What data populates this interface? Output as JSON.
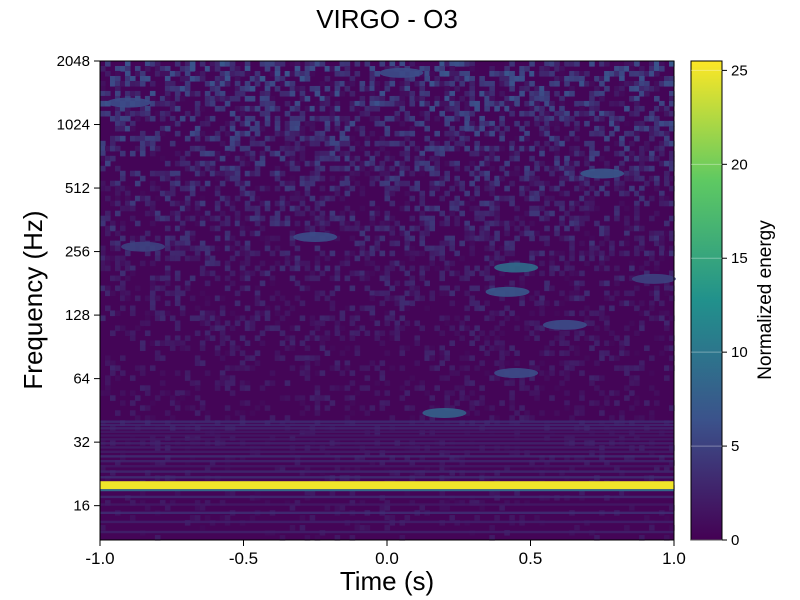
{
  "chart_data": {
    "type": "heatmap",
    "title": "VIRGO - O3",
    "xlabel": "Time (s)",
    "ylabel": "Frequency (Hz)",
    "colorbar_label": "Normalized energy",
    "colormap": "viridis",
    "colormap_stops": [
      "#440154",
      "#3b528b",
      "#21918c",
      "#5ec962",
      "#fde725"
    ],
    "xlim": [
      -1.0,
      1.0
    ],
    "ylim": [
      11,
      2048
    ],
    "yscale": "log2",
    "xticks": [
      -1.0,
      -0.5,
      0.0,
      0.5,
      1.0
    ],
    "xtick_labels": [
      "-1.0",
      "-0.5",
      "0.0",
      "0.5",
      "1.0"
    ],
    "yticks": [
      16,
      32,
      64,
      128,
      256,
      512,
      1024,
      2048
    ],
    "ytick_labels": [
      "16",
      "32",
      "64",
      "128",
      "256",
      "512",
      "1024",
      "2048"
    ],
    "colorbar_range": [
      0,
      25.5
    ],
    "colorbar_ticks": [
      0,
      5,
      10,
      15,
      20,
      25
    ],
    "colorbar_tick_labels": [
      "0",
      "5",
      "10",
      "15",
      "20",
      "25"
    ],
    "grid": false,
    "features": [
      {
        "type": "band",
        "t_start": -1.0,
        "t_end": 1.0,
        "freq": 20,
        "energy": 25
      },
      {
        "type": "blob",
        "t": 0.2,
        "freq": 44,
        "energy": 8
      },
      {
        "type": "blob",
        "t": 0.45,
        "freq": 68,
        "energy": 6
      },
      {
        "type": "blob",
        "t": 0.45,
        "freq": 215,
        "energy": 9
      },
      {
        "type": "blob",
        "t": 0.42,
        "freq": 165,
        "energy": 7
      },
      {
        "type": "blob",
        "t": 0.62,
        "freq": 115,
        "energy": 6
      },
      {
        "type": "blob",
        "t": -0.25,
        "freq": 300,
        "energy": 6
      },
      {
        "type": "blob",
        "t": -0.85,
        "freq": 270,
        "energy": 5
      },
      {
        "type": "blob",
        "t": 0.93,
        "freq": 190,
        "energy": 5
      },
      {
        "type": "blob",
        "t": 0.75,
        "freq": 600,
        "energy": 7
      },
      {
        "type": "blob",
        "t": -0.9,
        "freq": 1300,
        "energy": 6
      },
      {
        "type": "blob",
        "t": 0.05,
        "freq": 1800,
        "energy": 6
      }
    ]
  }
}
